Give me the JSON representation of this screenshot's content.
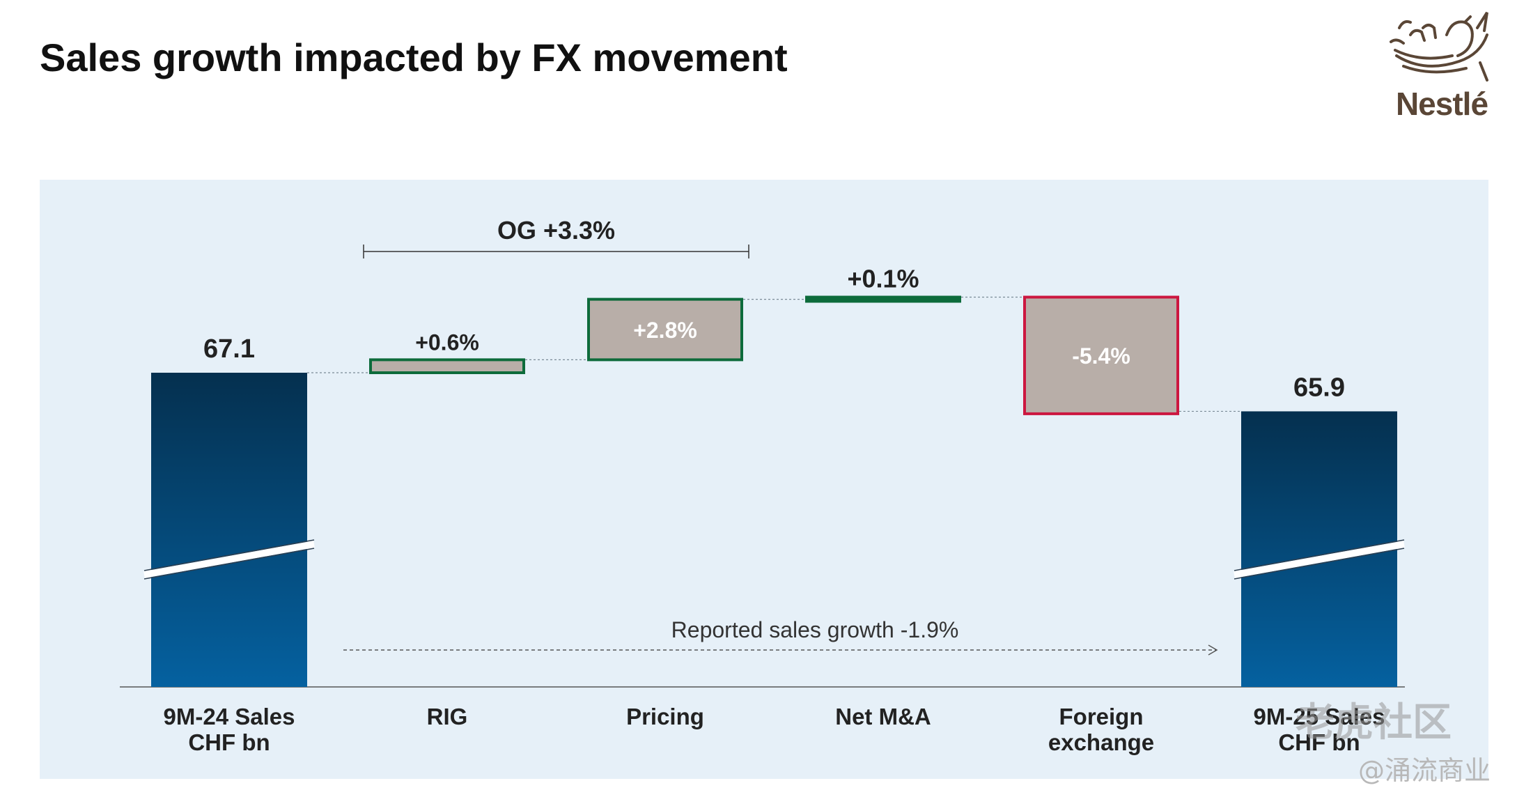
{
  "page": {
    "title": "Sales growth impacted by FX movement",
    "logo_text": "Nestlé",
    "watermark_primary": "老虎社区",
    "watermark_secondary": "@涌流商业"
  },
  "colors": {
    "panel_bg": "#e6f0f8",
    "base_bar_top": "#05304f",
    "base_bar_bottom": "#0561a0",
    "step_fill": "#b8aea8",
    "positive_border": "#0d6b3b",
    "negative_border": "#cc1740",
    "text": "#222222"
  },
  "chart_data": {
    "type": "waterfall",
    "title": "Sales growth impacted by FX movement",
    "units": "CHF bn / %",
    "categories": [
      "9M-24 Sales\nCHF bn",
      "RIG",
      "Pricing",
      "Net M&A",
      "Foreign\nexchange",
      "9M-25 Sales\nCHF bn"
    ],
    "steps": [
      {
        "label": "9M-24 Sales\nCHF bn",
        "kind": "total",
        "value": 67.1,
        "display": "67.1"
      },
      {
        "label": "RIG",
        "kind": "delta",
        "value": 0.6,
        "display": "+0.6%"
      },
      {
        "label": "Pricing",
        "kind": "delta",
        "value": 2.8,
        "display": "+2.8%"
      },
      {
        "label": "Net M&A",
        "kind": "delta",
        "value": 0.1,
        "display": "+0.1%"
      },
      {
        "label": "Foreign\nexchange",
        "kind": "delta",
        "value": -5.4,
        "display": "-5.4%"
      },
      {
        "label": "9M-25 Sales\nCHF bn",
        "kind": "total",
        "value": 65.9,
        "display": "65.9"
      }
    ],
    "annotations": {
      "organic_growth": {
        "label": "OG +3.3%",
        "spans": [
          "RIG",
          "Pricing"
        ],
        "value": 3.3
      },
      "reported_growth": {
        "label": "Reported sales growth -1.9%",
        "value": -1.9
      }
    },
    "axis_break": true,
    "grid": false,
    "legend": "none"
  }
}
